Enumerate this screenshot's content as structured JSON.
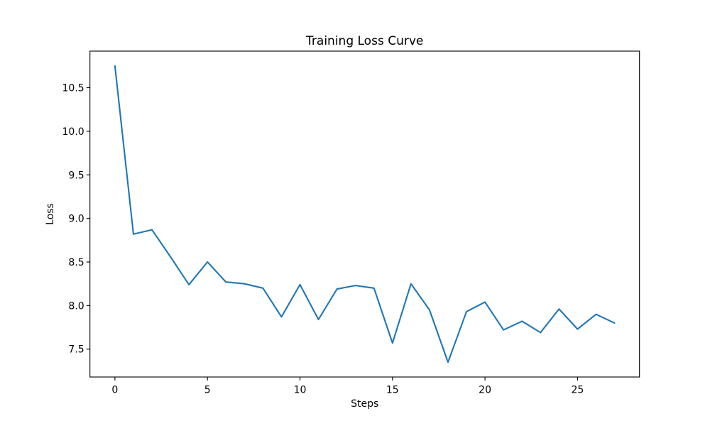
{
  "page": {
    "background": "#ffffff"
  },
  "chart_data": {
    "type": "line",
    "title": "Training Loss Curve",
    "xlabel": "Steps",
    "ylabel": "Loss",
    "x": [
      0,
      1,
      2,
      3,
      4,
      5,
      6,
      7,
      8,
      9,
      10,
      11,
      12,
      13,
      14,
      15,
      16,
      17,
      18,
      19,
      20,
      21,
      22,
      23,
      24,
      25,
      26,
      27
    ],
    "y": [
      10.75,
      8.82,
      8.87,
      8.56,
      8.24,
      8.5,
      8.27,
      8.25,
      8.2,
      7.87,
      8.24,
      7.84,
      8.19,
      8.23,
      8.2,
      7.57,
      8.25,
      7.95,
      7.35,
      7.93,
      8.04,
      7.72,
      7.82,
      7.69,
      7.96,
      7.73,
      7.9,
      7.8
    ],
    "xlim": [
      -1.35,
      28.35
    ],
    "ylim": [
      7.18,
      10.92
    ],
    "xticks": [
      0,
      5,
      10,
      15,
      20,
      25
    ],
    "yticks": [
      7.5,
      8.0,
      8.5,
      9.0,
      9.5,
      10.0,
      10.5
    ],
    "x_tick_format": "integer",
    "y_tick_format": "one_decimal",
    "line_color": "#1f77b4",
    "spine_color": "#000000",
    "text_color": "#000000",
    "grid": false,
    "legend": "none"
  }
}
